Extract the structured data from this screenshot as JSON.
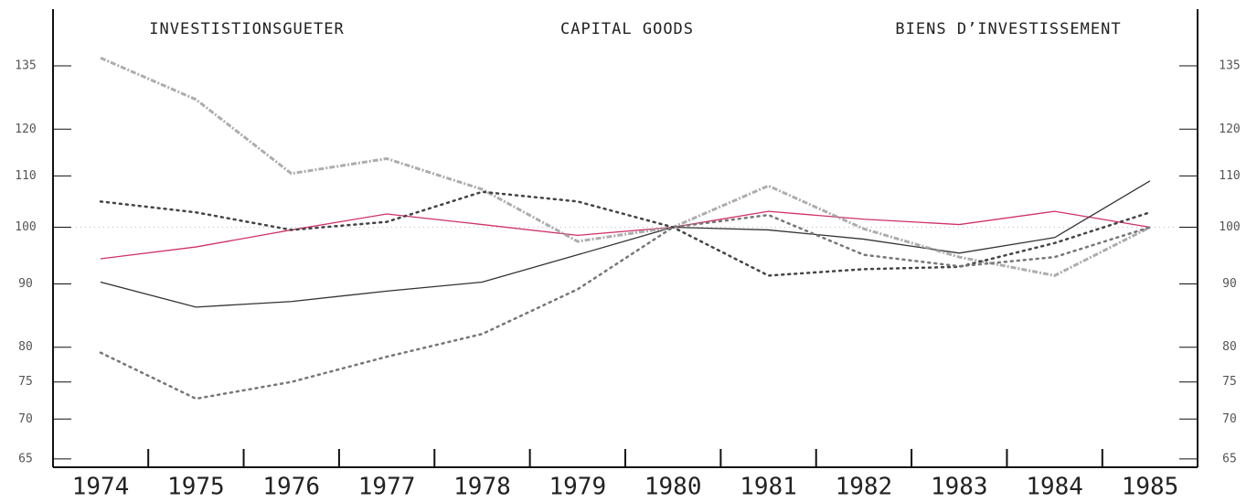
{
  "chart_data": {
    "type": "line",
    "titles": [
      "INVESTISTIONSGUETER",
      "CAPITAL GOODS",
      "BIENS D’INVESTISSEMENT"
    ],
    "categories": [
      "1974",
      "1975",
      "1976",
      "1977",
      "1978",
      "1979",
      "1980",
      "1981",
      "1982",
      "1983",
      "1984",
      "1985"
    ],
    "series": [
      {
        "color": "#d0306a",
        "style": "solid",
        "values": [
          94.3,
          96.4,
          99.5,
          102.5,
          100.5,
          98.5,
          100,
          103,
          101.5,
          100.5,
          103,
          100
        ]
      },
      {
        "color": "#333333",
        "style": "solid",
        "values": [
          90.3,
          86.2,
          87.1,
          88.8,
          90.3,
          95,
          100,
          99.5,
          97.8,
          95.3,
          98.1,
          109
        ]
      },
      {
        "color": "#999999",
        "style": "dashdot",
        "values": [
          137,
          126.8,
          110.5,
          113.6,
          107.3,
          97.4,
          100,
          108,
          99.7,
          94.6,
          91.4,
          100
        ]
      },
      {
        "color": "#444444",
        "style": "dotted",
        "values": [
          104.9,
          102.8,
          99.5,
          101,
          106.8,
          104.9,
          100,
          91.4,
          92.5,
          92.9,
          97.1,
          102.8
        ]
      },
      {
        "color": "#777777",
        "style": "dotted",
        "values": [
          79.2,
          72.7,
          75,
          78.6,
          82,
          89.1,
          100,
          102.3,
          95,
          93,
          94.6,
          100
        ]
      }
    ],
    "reference_line": 100,
    "log_scale": true,
    "ylim": [
      64,
      150
    ],
    "yticks": [
      65,
      70,
      75,
      80,
      90,
      100,
      110,
      120,
      135
    ]
  }
}
